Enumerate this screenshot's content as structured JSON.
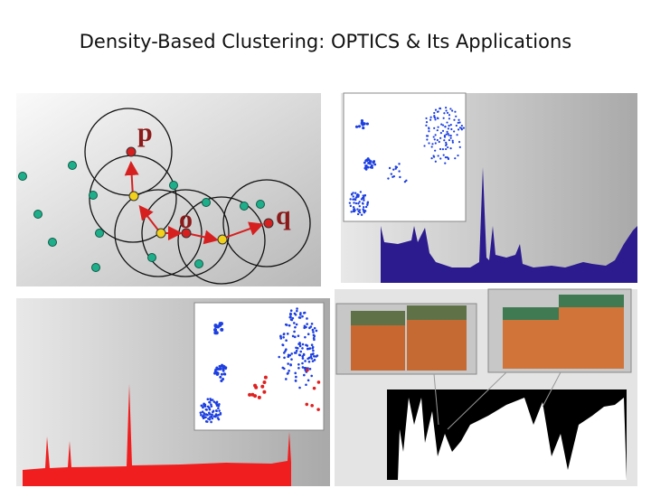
{
  "title": "Density-Based Clustering: OPTICS & Its Applications",
  "diagram": {
    "labels": [
      "p",
      "o",
      "q"
    ]
  }
}
